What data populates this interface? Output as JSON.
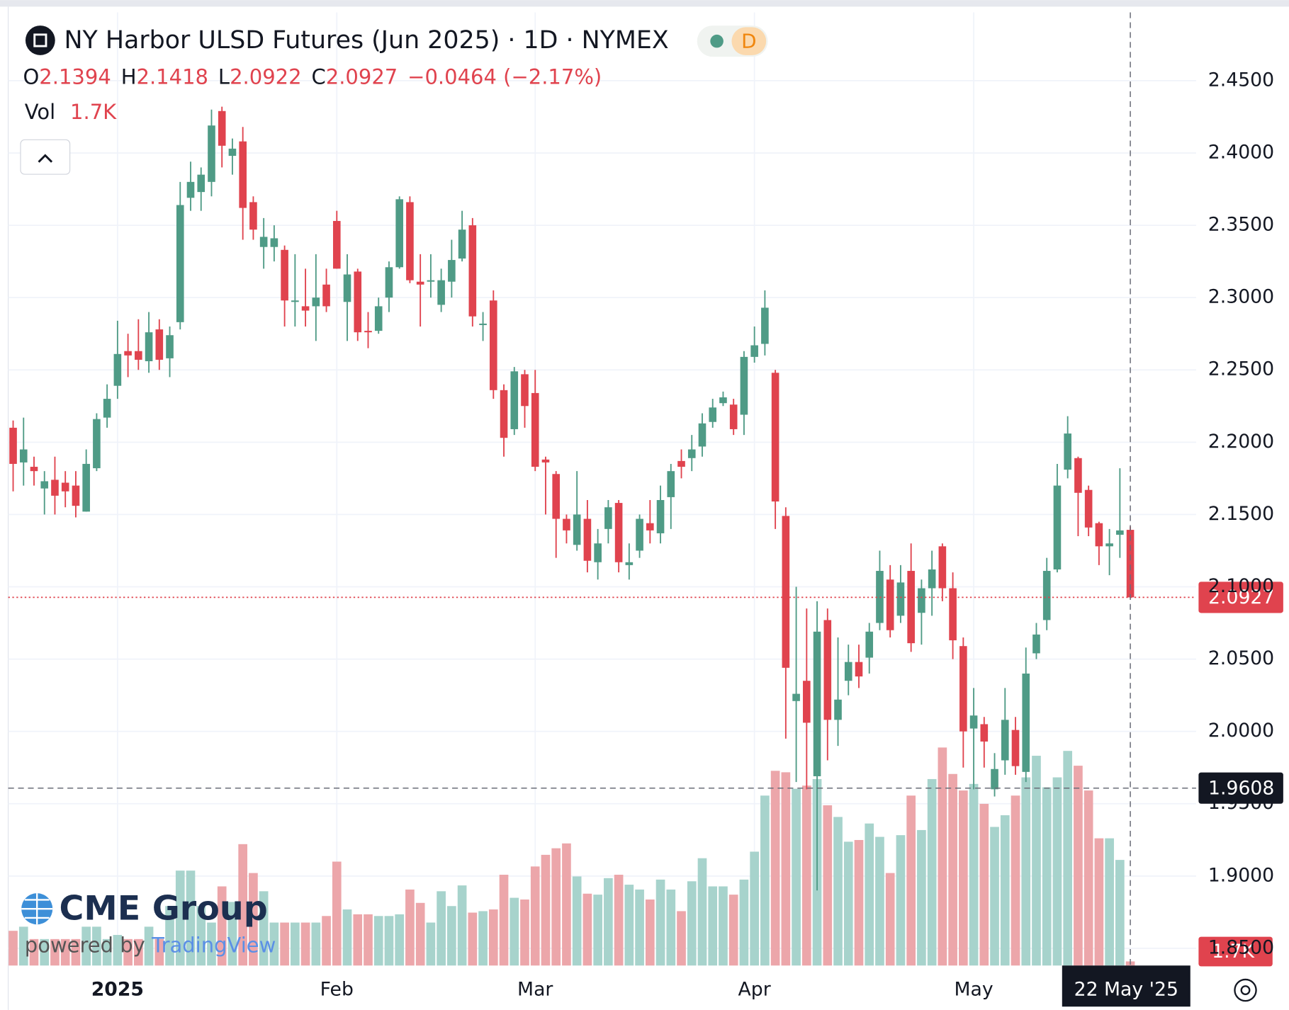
{
  "chart_data": {
    "type": "candlestick",
    "title": "NY Harbor ULSD Futures (Jun 2025) · 1D · NYMEX",
    "badge": "D",
    "legend_letters": [
      "O",
      "H",
      "L",
      "C"
    ],
    "change_label": "−0.0464 (−2.17%)",
    "volume_name": "Vol",
    "last_volume_label": "1.7K",
    "up_color": "#4f9b86",
    "down_color": "#e0434e",
    "volume_up_color": "#a7d3cc",
    "volume_down_color": "#eca6aa",
    "open": [
      2.21,
      2.186,
      2.183,
      2.168,
      2.174,
      2.172,
      2.17,
      2.152,
      2.182,
      2.217,
      2.239,
      2.263,
      2.263,
      2.256,
      2.278,
      2.258,
      2.283,
      2.369,
      2.373,
      2.38,
      2.429,
      2.398,
      2.408,
      2.366,
      2.335,
      2.335,
      2.333,
      2.297,
      2.294,
      2.294,
      2.309,
      2.353,
      2.297,
      2.318,
      2.277,
      2.277,
      2.3,
      2.321,
      2.366,
      2.311,
      2.311,
      2.295,
      2.311,
      2.327,
      2.35,
      2.281,
      2.298,
      2.236,
      2.209,
      2.247,
      2.234,
      2.188,
      2.178,
      2.147,
      2.129,
      2.147,
      2.117,
      2.14,
      2.158,
      2.115,
      2.125,
      2.144,
      2.137,
      2.162,
      2.187,
      2.189,
      2.197,
      2.214,
      2.227,
      2.226,
      2.219,
      2.259,
      2.268,
      2.248,
      2.149,
      2.021,
      2.035,
      1.969,
      2.077,
      2.008,
      2.035,
      2.048,
      2.051,
      2.075,
      2.105,
      2.08,
      2.111,
      2.082,
      2.099,
      2.128,
      2.099,
      2.059,
      2.002,
      2.005,
      1.96,
      1.98,
      2.001,
      1.972,
      2.054,
      2.077,
      2.112,
      2.181,
      2.189,
      2.167,
      2.144,
      2.128,
      2.136,
      2.1394
    ],
    "high": [
      2.215,
      2.217,
      2.19,
      2.18,
      2.19,
      2.18,
      2.18,
      2.195,
      2.22,
      2.24,
      2.284,
      2.275,
      2.285,
      2.29,
      2.285,
      2.28,
      2.38,
      2.394,
      2.39,
      2.43,
      2.432,
      2.41,
      2.418,
      2.37,
      2.355,
      2.35,
      2.336,
      2.33,
      2.32,
      2.33,
      2.32,
      2.36,
      2.33,
      2.32,
      2.29,
      2.3,
      2.325,
      2.37,
      2.37,
      2.33,
      2.33,
      2.32,
      2.34,
      2.36,
      2.355,
      2.29,
      2.305,
      2.24,
      2.252,
      2.25,
      2.25,
      2.19,
      2.18,
      2.15,
      2.18,
      2.16,
      2.14,
      2.16,
      2.16,
      2.13,
      2.15,
      2.16,
      2.17,
      2.185,
      2.195,
      2.205,
      2.22,
      2.23,
      2.235,
      2.23,
      2.263,
      2.28,
      2.305,
      2.25,
      2.155,
      2.1,
      2.085,
      2.09,
      2.085,
      2.065,
      2.06,
      2.06,
      2.075,
      2.125,
      2.115,
      2.115,
      2.13,
      2.105,
      2.125,
      2.13,
      2.11,
      2.065,
      2.03,
      2.01,
      1.985,
      2.03,
      2.01,
      2.058,
      2.075,
      2.12,
      2.185,
      2.218,
      2.19,
      2.17,
      2.145,
      2.14,
      2.182,
      2.1418
    ],
    "low": [
      2.166,
      2.17,
      2.17,
      2.15,
      2.15,
      2.155,
      2.148,
      2.152,
      2.18,
      2.21,
      2.23,
      2.245,
      2.25,
      2.248,
      2.25,
      2.245,
      2.278,
      2.36,
      2.36,
      2.37,
      2.39,
      2.385,
      2.34,
      2.34,
      2.32,
      2.325,
      2.28,
      2.28,
      2.28,
      2.27,
      2.29,
      2.32,
      2.27,
      2.27,
      2.265,
      2.275,
      2.29,
      2.32,
      2.31,
      2.28,
      2.3,
      2.29,
      2.3,
      2.325,
      2.28,
      2.27,
      2.23,
      2.19,
      2.205,
      2.21,
      2.18,
      2.15,
      2.12,
      2.13,
      2.125,
      2.11,
      2.105,
      2.13,
      2.11,
      2.105,
      2.12,
      2.13,
      2.13,
      2.14,
      2.175,
      2.18,
      2.19,
      2.21,
      2.225,
      2.205,
      2.205,
      2.255,
      2.26,
      2.14,
      1.995,
      1.965,
      1.96,
      1.89,
      1.98,
      1.99,
      2.025,
      2.03,
      2.04,
      2.07,
      2.065,
      2.075,
      2.055,
      2.06,
      2.08,
      2.09,
      2.05,
      1.975,
      1.96,
      1.975,
      1.955,
      1.97,
      1.97,
      1.965,
      2.05,
      2.07,
      2.11,
      2.175,
      2.135,
      2.135,
      2.115,
      2.108,
      2.12,
      2.0922
    ],
    "close": [
      2.185,
      2.195,
      2.18,
      2.173,
      2.163,
      2.166,
      2.156,
      2.185,
      2.216,
      2.23,
      2.261,
      2.26,
      2.257,
      2.276,
      2.257,
      2.274,
      2.364,
      2.38,
      2.385,
      2.419,
      2.405,
      2.403,
      2.362,
      2.347,
      2.342,
      2.341,
      2.298,
      2.298,
      2.291,
      2.3,
      2.294,
      2.32,
      2.316,
      2.276,
      2.276,
      2.294,
      2.321,
      2.368,
      2.312,
      2.309,
      2.312,
      2.312,
      2.326,
      2.347,
      2.287,
      2.282,
      2.236,
      2.203,
      2.249,
      2.225,
      2.183,
      2.186,
      2.147,
      2.139,
      2.15,
      2.118,
      2.13,
      2.155,
      2.117,
      2.117,
      2.147,
      2.139,
      2.16,
      2.18,
      2.183,
      2.195,
      2.213,
      2.224,
      2.231,
      2.209,
      2.259,
      2.267,
      2.293,
      2.159,
      2.044,
      2.026,
      2.006,
      2.069,
      2.008,
      2.022,
      2.048,
      2.038,
      2.069,
      2.111,
      2.07,
      2.103,
      2.061,
      2.099,
      2.112,
      2.099,
      2.063,
      2.0,
      2.011,
      1.993,
      1.974,
      2.008,
      1.976,
      2.04,
      2.067,
      2.111,
      2.17,
      2.206,
      2.165,
      2.141,
      2.128,
      2.13,
      2.139,
      2.0927
    ],
    "volume": [
      14300,
      16000,
      10900,
      10900,
      10900,
      10900,
      10900,
      16000,
      16000,
      10900,
      12600,
      10900,
      10900,
      16000,
      10900,
      24500,
      39100,
      39100,
      24500,
      17700,
      32600,
      26200,
      50000,
      38100,
      30600,
      17700,
      17700,
      17700,
      17700,
      17700,
      20400,
      42800,
      23100,
      21100,
      21100,
      20400,
      20400,
      21100,
      31300,
      25800,
      17700,
      30600,
      24500,
      33000,
      21800,
      22400,
      23100,
      37400,
      27900,
      27200,
      40800,
      45600,
      48300,
      50300,
      36700,
      29600,
      29200,
      36000,
      37400,
      33300,
      31300,
      27200,
      35400,
      31300,
      22400,
      34700,
      44200,
      32600,
      32600,
      29200,
      35400,
      46900,
      70000,
      80200,
      79600,
      72800,
      74100,
      76800,
      66000,
      61200,
      51000,
      51700,
      58500,
      53000,
      38100,
      53700,
      70000,
      55800,
      76800,
      89800,
      78900,
      72100,
      74800,
      66600,
      57100,
      61900,
      70000,
      77500,
      86400,
      73400,
      77500,
      88400,
      82300,
      72100,
      52400,
      52400,
      43500,
      1700
    ],
    "xlim": [
      -0.47,
      113.3
    ],
    "xticks": [
      {
        "value": 10,
        "label": "2025"
      },
      {
        "value": 31,
        "label": "Feb"
      },
      {
        "value": 50,
        "label": "Mar"
      },
      {
        "value": 71,
        "label": "Apr"
      },
      {
        "value": 92,
        "label": "May"
      }
    ],
    "ylim": [
      1.8381,
      2.4972
    ],
    "yticks": [
      {
        "value": 1.85,
        "label": "1.8500"
      },
      {
        "value": 1.9,
        "label": "1.9000"
      },
      {
        "value": 1.95,
        "label": "1.9500"
      },
      {
        "value": 2.0,
        "label": "2.0000"
      },
      {
        "value": 2.05,
        "label": "2.0500"
      },
      {
        "value": 2.1,
        "label": "2.1000"
      },
      {
        "value": 2.15,
        "label": "2.1500"
      },
      {
        "value": 2.2,
        "label": "2.2000"
      },
      {
        "value": 2.25,
        "label": "2.2500"
      },
      {
        "value": 2.3,
        "label": "2.3000"
      },
      {
        "value": 2.35,
        "label": "2.3500"
      },
      {
        "value": 2.4,
        "label": "2.4000"
      },
      {
        "value": 2.45,
        "label": "2.4500"
      }
    ],
    "volume_ylim": [
      0,
      200000
    ],
    "grid": true,
    "crosshair": {
      "price": 1.9608,
      "index": 107,
      "label": "22 May '25"
    },
    "logo": {
      "brand": "CME Group",
      "powered": "powered by",
      "platform": "TradingView"
    }
  }
}
